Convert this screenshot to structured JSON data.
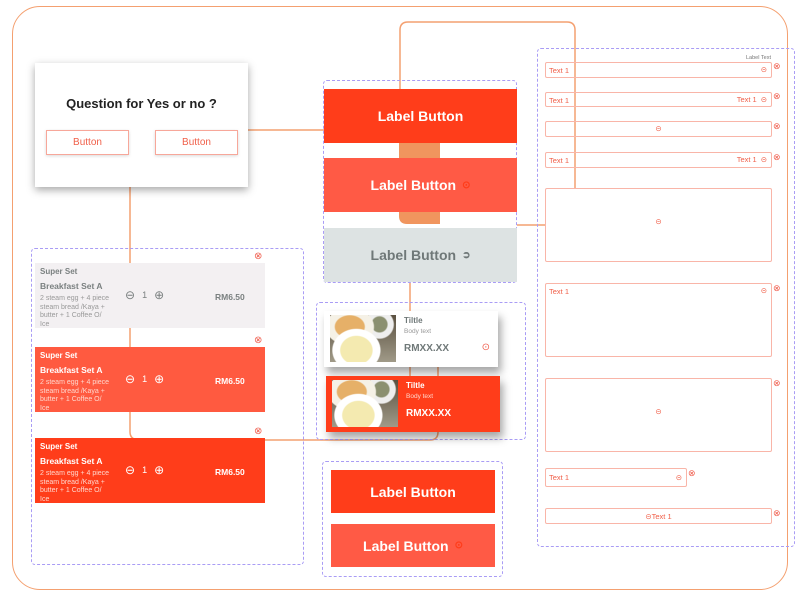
{
  "dialog": {
    "question": "Question for Yes or no ?",
    "buttons": [
      "Button",
      "Button"
    ]
  },
  "order_cards": [
    {
      "category": "Super Set",
      "name": "Breakfast Set A",
      "description": "2 steam egg + 4 piece steam bread /Kaya + butter + 1 Coffee O/ Ice",
      "quantity": "1",
      "price": "RM6.50",
      "bg": "#f3f0f2",
      "state": "default"
    },
    {
      "category": "Super Set",
      "name": "Breakfast Set A",
      "description": "2 steam egg + 4 piece steam bread /Kaya + butter + 1 Coffee O/ Ice",
      "quantity": "1",
      "price": "RM6.50",
      "bg": "#ff5a40",
      "state": "hover"
    },
    {
      "category": "Super Set",
      "name": "Breakfast Set A",
      "description": "2 steam egg + 4 piece steam bread /Kaya + butter + 1 Coffee O/ Ice",
      "quantity": "1",
      "price": "RM6.50",
      "bg": "#ff3d1a",
      "state": "pressed"
    }
  ],
  "label_buttons": [
    {
      "label": "Label Button",
      "bg": "#ff3d1a"
    },
    {
      "label": "Label Button",
      "bg": "#ff5a45",
      "icon": "arrow-circle-icon"
    },
    {
      "label": "Label Button",
      "bg": "#dde3e3",
      "icon": "arrow-circle-icon"
    },
    {
      "label": "Label Button",
      "bg": "#ff3d1a"
    },
    {
      "label": "Label Button",
      "bg": "#ff5a45",
      "icon": "arrow-circle-icon"
    }
  ],
  "product_cards": [
    {
      "title": "Tiltle",
      "body": "Body text",
      "price": "RMXX.XX"
    },
    {
      "title": "Tiltle",
      "body": "Body text",
      "price": "RMXX.XX"
    }
  ],
  "fields": {
    "label_text": "Label Text",
    "text": "Text 1"
  },
  "colors": {
    "primary": "#ff3d1a",
    "secondary": "#ff5a45",
    "connector": "#f4a070",
    "guide": "#a99cf5"
  }
}
